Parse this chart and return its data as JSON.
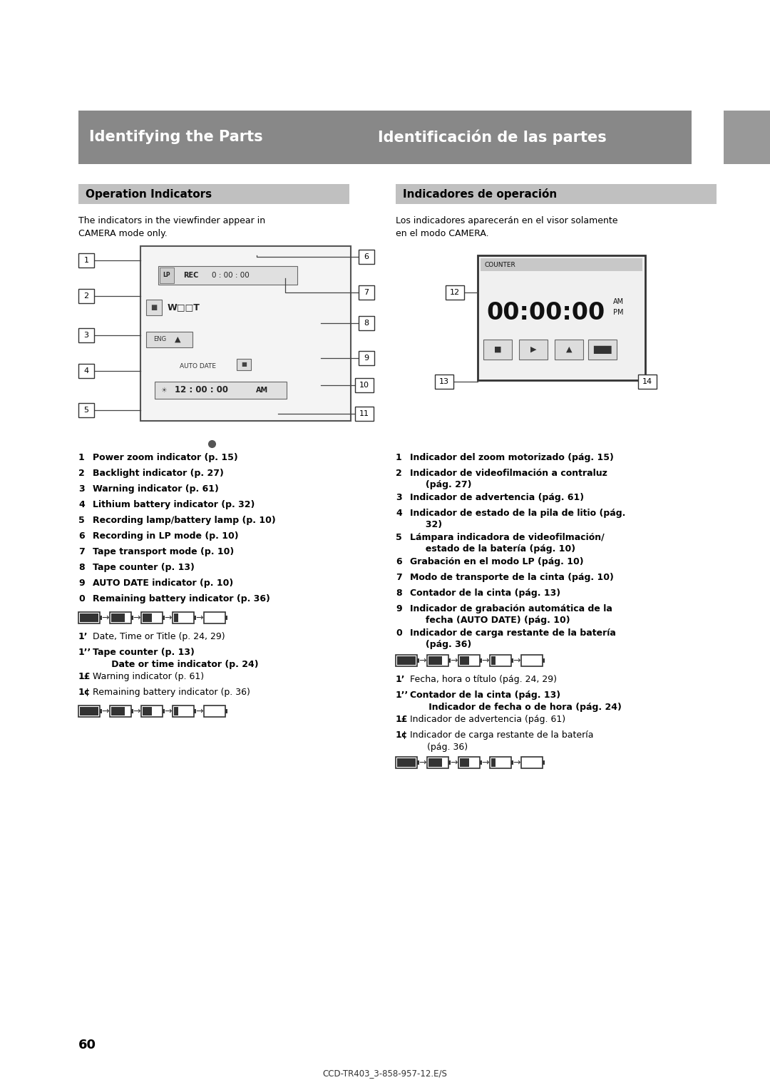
{
  "bg_color": "#ffffff",
  "header_bg": "#888888",
  "header_side_bg": "#999999",
  "header_text_color": "#ffffff",
  "header_left": "Identifying the Parts",
  "header_right": "Identificación de las partes",
  "section_bg": "#c0c0c0",
  "section_left": "Operation Indicators",
  "section_right": "Indicadores de operación",
  "intro_left": "The indicators in the viewfinder appear in\nCAMERA mode only.",
  "intro_right": "Los indicadores aparecerán en el visor solamente\nen el modo CAMERA.",
  "items_left": [
    [
      "1",
      "Power zoom indicator (p. 15)"
    ],
    [
      "2",
      "Backlight indicator (p. 27)"
    ],
    [
      "3",
      "Warning indicator (p. 61)"
    ],
    [
      "4",
      "Lithium battery indicator (p. 32)"
    ],
    [
      "5",
      "Recording lamp/battery lamp (p. 10)"
    ],
    [
      "6",
      "Recording in LP mode (p. 10)"
    ],
    [
      "7",
      "Tape transport mode (p. 10)"
    ],
    [
      "8",
      "Tape counter (p. 13)"
    ],
    [
      "9",
      "AUTO DATE indicator (p. 10)"
    ],
    [
      "0",
      "Remaining battery indicator (p. 36)"
    ]
  ],
  "items_right": [
    [
      "1",
      "Indicador del zoom motorizado (pág. 15)"
    ],
    [
      "2",
      "Indicador de videofilmación a contraluz\n     (pág. 27)"
    ],
    [
      "3",
      "Indicador de advertencia (pág. 61)"
    ],
    [
      "4",
      "Indicador de estado de la pila de litio (pág.\n     32)"
    ],
    [
      "5",
      "Lámpara indicadora de videofilmación/\n     estado de la batería (pág. 10)"
    ],
    [
      "6",
      "Grabación en el modo LP (pág. 10)"
    ],
    [
      "7",
      "Modo de transporte de la cinta (pág. 10)"
    ],
    [
      "8",
      "Contador de la cinta (pág. 13)"
    ],
    [
      "9",
      "Indicador de grabación automática de la\n     fecha (AUTO DATE) (pág. 10)"
    ],
    [
      "0",
      "Indicador de carga restante de la batería\n     (pág. 36)"
    ]
  ],
  "extra_left": [
    [
      "1ʼ",
      "Date, Time or Title (p. 24, 29)",
      false
    ],
    [
      "1ʼʼ",
      "Tape counter (p. 13)\n      Date or time indicator (p. 24)",
      true
    ],
    [
      "1£",
      "Warning indicator (p. 61)",
      false
    ],
    [
      "1¢",
      "Remaining battery indicator (p. 36)",
      false
    ]
  ],
  "extra_right": [
    [
      "1ʼ",
      "Fecha, hora o título (pág. 24, 29)",
      false
    ],
    [
      "1ʼʼ",
      "Contador de la cinta (pág. 13)\n      Indicador de fecha o de hora (pág. 24)",
      true
    ],
    [
      "1£",
      "Indicador de advertencia (pág. 61)",
      false
    ],
    [
      "1¢",
      "Indicador de carga restante de la batería\n      (pág. 36)",
      false
    ]
  ],
  "page_number": "60",
  "footer": "CCD-TR403_3-858-957-12.E/S"
}
